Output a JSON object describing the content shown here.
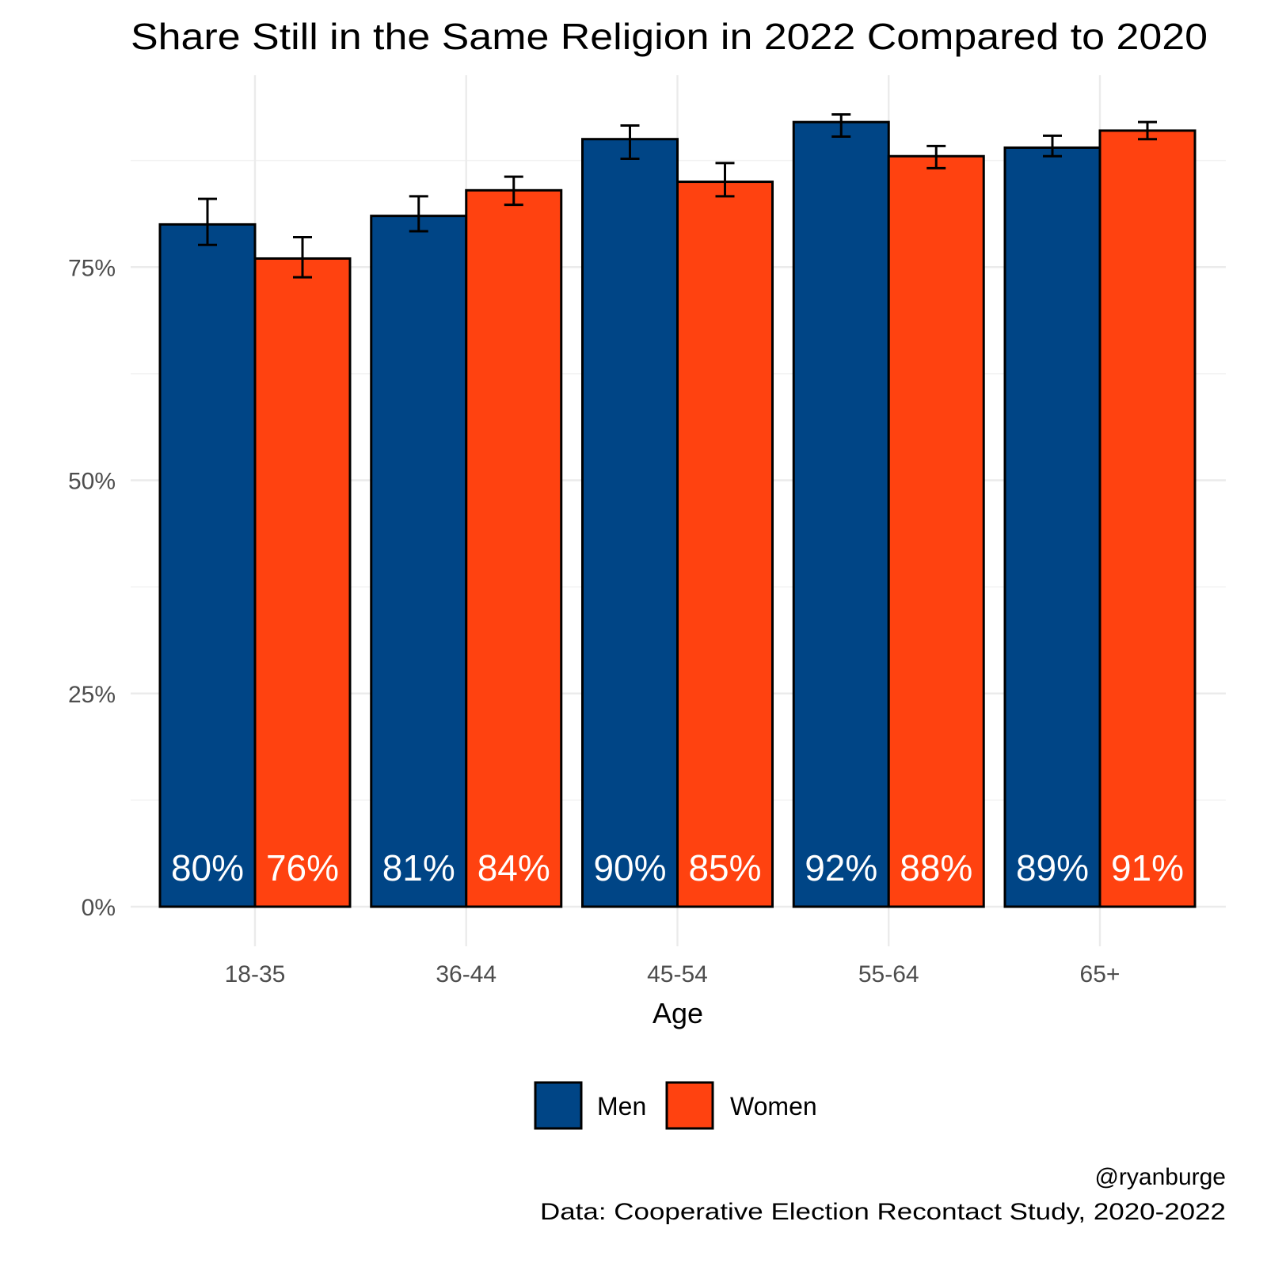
{
  "chart_data": {
    "type": "bar",
    "title": "Share Still in the Same Religion in 2022 Compared to 2020",
    "xlabel": "Age",
    "ylabel": "",
    "ylim": [
      0,
      1
    ],
    "yticks": [
      0,
      0.25,
      0.5,
      0.75
    ],
    "ytick_labels": [
      "0%",
      "25%",
      "50%",
      "75%"
    ],
    "categories": [
      "18-35",
      "36-44",
      "45-54",
      "55-64",
      "65+"
    ],
    "series": [
      {
        "name": "Men",
        "color": "#004586",
        "values": [
          0.8,
          0.81,
          0.9,
          0.92,
          0.89
        ],
        "labels": [
          "80%",
          "81%",
          "90%",
          "92%",
          "89%"
        ],
        "error_low": [
          0.776,
          0.792,
          0.877,
          0.903,
          0.88
        ],
        "error_high": [
          0.83,
          0.833,
          0.916,
          0.929,
          0.904
        ]
      },
      {
        "name": "Women",
        "color": "#FF4210",
        "values": [
          0.76,
          0.84,
          0.85,
          0.88,
          0.91
        ],
        "labels": [
          "76%",
          "84%",
          "85%",
          "88%",
          "91%"
        ],
        "error_low": [
          0.738,
          0.823,
          0.833,
          0.866,
          0.9
        ],
        "error_high": [
          0.785,
          0.856,
          0.872,
          0.892,
          0.92
        ]
      }
    ],
    "legend_position": "bottom",
    "grid": true,
    "caption": [
      "@ryanburge",
      "Data: Cooperative Election Recontact Study, 2020-2022"
    ]
  }
}
